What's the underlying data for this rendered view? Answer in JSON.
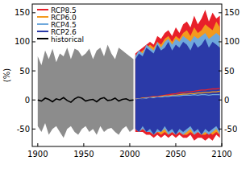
{
  "chart_data": {
    "type": "line",
    "y_label": "(%)",
    "xlim": [
      1894,
      2100
    ],
    "xticks": [
      1900,
      1950,
      2000,
      2050,
      2100
    ],
    "ylim": [
      -80,
      165
    ],
    "yticks": [
      -50,
      0,
      50,
      100,
      150
    ],
    "legend": "top-left",
    "series": [
      {
        "name": "RCP8.5",
        "color": "#e8202a",
        "x": [
          2006,
          2010,
          2014,
          2018,
          2022,
          2026,
          2030,
          2034,
          2038,
          2042,
          2046,
          2050,
          2054,
          2058,
          2062,
          2066,
          2070,
          2074,
          2078,
          2082,
          2086,
          2090,
          2094,
          2098
        ],
        "values": [
          1,
          2,
          3,
          4,
          5,
          6,
          6,
          7,
          8,
          9,
          10,
          11,
          12,
          13,
          14,
          14,
          15,
          16,
          17,
          17,
          18,
          19,
          19,
          20
        ],
        "high": [
          80,
          85,
          90,
          95,
          100,
          95,
          110,
          105,
          115,
          120,
          110,
          125,
          115,
          130,
          135,
          125,
          145,
          130,
          140,
          155,
          135,
          150,
          140,
          145
        ],
        "low": [
          -55,
          -55,
          -55,
          -60,
          -60,
          -65,
          -60,
          -65,
          -60,
          -65,
          -60,
          -65,
          -60,
          -65,
          -65,
          -60,
          -70,
          -65,
          -65,
          -70,
          -65,
          -70,
          -60,
          -65
        ]
      },
      {
        "name": "RCP6.0",
        "color": "#f39a1e",
        "x": [
          2006,
          2010,
          2014,
          2018,
          2022,
          2026,
          2030,
          2034,
          2038,
          2042,
          2046,
          2050,
          2054,
          2058,
          2062,
          2066,
          2070,
          2074,
          2078,
          2082,
          2086,
          2090,
          2094,
          2098
        ],
        "values": [
          1,
          2,
          3,
          3,
          4,
          5,
          5,
          6,
          7,
          7,
          8,
          8,
          9,
          10,
          10,
          11,
          11,
          12,
          12,
          13,
          13,
          14,
          14,
          15
        ],
        "high": [
          75,
          80,
          85,
          90,
          95,
          90,
          100,
          95,
          105,
          110,
          100,
          110,
          105,
          115,
          120,
          110,
          125,
          115,
          120,
          130,
          125,
          120,
          135,
          125
        ],
        "low": [
          -50,
          -55,
          -50,
          -55,
          -55,
          -60,
          -55,
          -60,
          -55,
          -60,
          -55,
          -60,
          -55,
          -60,
          -60,
          -55,
          -60,
          -55,
          -60,
          -60,
          -55,
          -60,
          -55,
          -60
        ]
      },
      {
        "name": "RCP4.5",
        "color": "#6fa8dc",
        "x": [
          2006,
          2010,
          2014,
          2018,
          2022,
          2026,
          2030,
          2034,
          2038,
          2042,
          2046,
          2050,
          2054,
          2058,
          2062,
          2066,
          2070,
          2074,
          2078,
          2082,
          2086,
          2090,
          2094,
          2098
        ],
        "values": [
          1,
          2,
          2,
          3,
          4,
          4,
          5,
          5,
          6,
          6,
          7,
          7,
          7,
          8,
          8,
          8,
          9,
          8,
          9,
          9,
          8,
          9,
          9,
          9
        ],
        "high": [
          75,
          85,
          80,
          95,
          90,
          85,
          100,
          90,
          100,
          105,
          95,
          105,
          100,
          110,
          105,
          100,
          110,
          105,
          110,
          115,
          105,
          110,
          115,
          110
        ],
        "low": [
          -50,
          -55,
          -50,
          -55,
          -55,
          -60,
          -55,
          -55,
          -50,
          -60,
          -55,
          -60,
          -55,
          -60,
          -55,
          -50,
          -60,
          -55,
          -60,
          -55,
          -60,
          -55,
          -50,
          -60
        ]
      },
      {
        "name": "RCP2.6",
        "color": "#2b3aa8",
        "x": [
          2006,
          2010,
          2014,
          2018,
          2022,
          2026,
          2030,
          2034,
          2038,
          2042,
          2046,
          2050,
          2054,
          2058,
          2062,
          2066,
          2070,
          2074,
          2078,
          2082,
          2086,
          2090,
          2094,
          2098
        ],
        "values": [
          0,
          1,
          2,
          1,
          3,
          2,
          4,
          3,
          4,
          3,
          5,
          4,
          5,
          4,
          6,
          5,
          4,
          5,
          6,
          5,
          4,
          5,
          6,
          5
        ],
        "high": [
          70,
          80,
          75,
          90,
          85,
          80,
          95,
          85,
          90,
          100,
          85,
          95,
          90,
          100,
          95,
          85,
          100,
          90,
          95,
          105,
          90,
          100,
          95,
          90
        ],
        "low": [
          -50,
          -55,
          -45,
          -55,
          -50,
          -60,
          -50,
          -55,
          -45,
          -55,
          -50,
          -60,
          -50,
          -55,
          -50,
          -45,
          -55,
          -50,
          -60,
          -50,
          -55,
          -50,
          -45,
          -55
        ]
      },
      {
        "name": "historical",
        "color": "#000000",
        "x": [
          1900,
          1904,
          1908,
          1912,
          1916,
          1920,
          1924,
          1928,
          1932,
          1936,
          1940,
          1944,
          1948,
          1952,
          1956,
          1960,
          1964,
          1968,
          1972,
          1976,
          1980,
          1984,
          1988,
          1992,
          1996,
          2000,
          2004
        ],
        "values": [
          0,
          -2,
          3,
          1,
          -3,
          2,
          0,
          4,
          -1,
          -4,
          2,
          5,
          3,
          -2,
          0,
          1,
          -3,
          2,
          4,
          -1,
          0,
          3,
          -2,
          1,
          2,
          -1,
          0
        ],
        "high": [
          75,
          60,
          85,
          70,
          88,
          65,
          80,
          75,
          90,
          70,
          88,
          85,
          75,
          80,
          88,
          70,
          85,
          90,
          75,
          95,
          80,
          70,
          90,
          85,
          80,
          75,
          70
        ],
        "low": [
          -45,
          -55,
          -40,
          -60,
          -50,
          -45,
          -55,
          -65,
          -50,
          -45,
          -55,
          -60,
          -50,
          -45,
          -55,
          -50,
          -60,
          -45,
          -55,
          -50,
          -48,
          -55,
          -60,
          -50,
          -45,
          -55,
          -50
        ]
      }
    ]
  }
}
